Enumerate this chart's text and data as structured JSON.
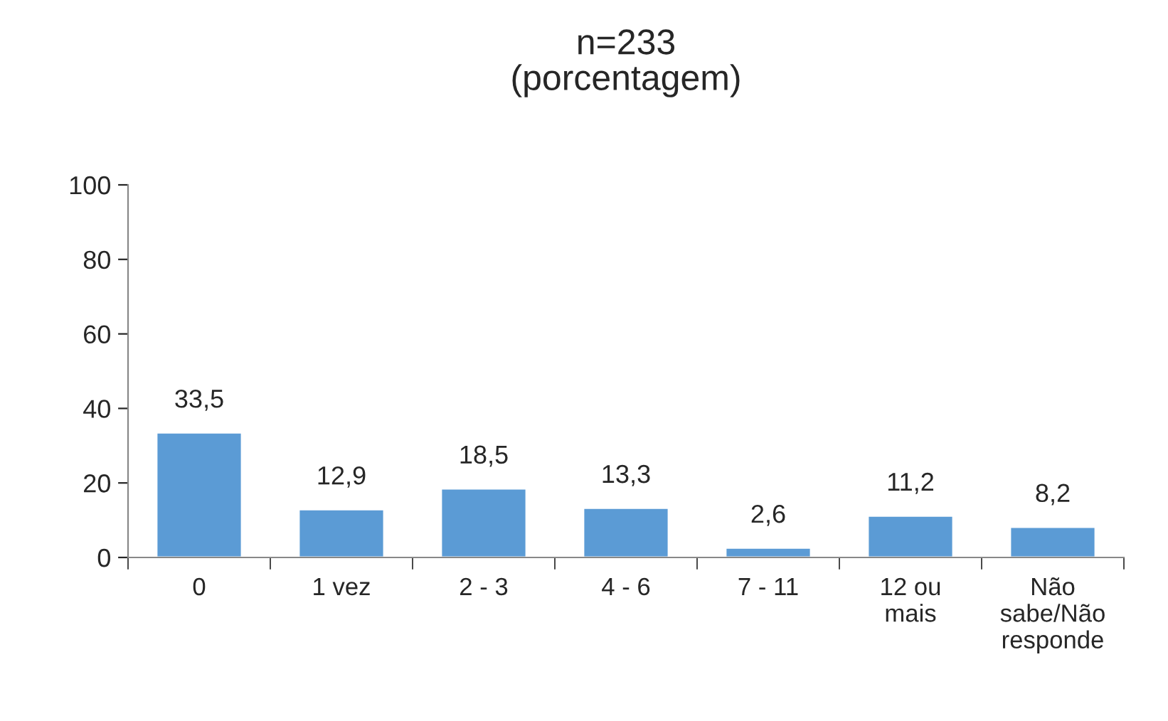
{
  "chart_data": {
    "type": "bar",
    "title": "n=233\n(porcentagem)",
    "categories": [
      "0",
      "1 vez",
      "2 - 3",
      "4 - 6",
      "7 - 11",
      "12 ou\nmais",
      "Não\nsabe/Não\nresponde"
    ],
    "values": [
      33.5,
      12.9,
      18.5,
      13.3,
      2.6,
      11.2,
      8.2
    ],
    "value_labels": [
      "33,5",
      "12,9",
      "18,5",
      "13,3",
      "2,6",
      "11,2",
      "8,2"
    ],
    "color": "#5b9bd5",
    "ylim": [
      0,
      100
    ],
    "yticks": [
      0,
      20,
      40,
      60,
      80,
      100
    ],
    "grid": false,
    "legend": false
  }
}
